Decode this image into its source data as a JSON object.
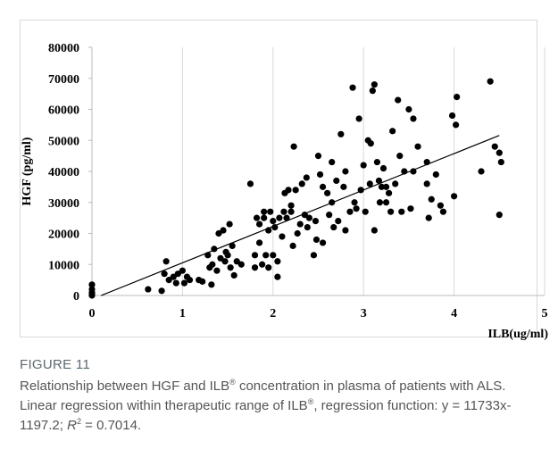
{
  "chart_data": {
    "type": "scatter",
    "xlabel": "ILB(ug/ml)",
    "ylabel": "HGF (pg/ml)",
    "xlim": [
      0,
      5
    ],
    "xticks": [
      0,
      1,
      2,
      3,
      4,
      5
    ],
    "ylim": [
      0,
      80000
    ],
    "yticks": [
      0,
      10000,
      20000,
      30000,
      40000,
      50000,
      60000,
      70000,
      80000
    ],
    "grid": "x",
    "series": [
      {
        "color": "#000000",
        "x": [
          0,
          0,
          0,
          0,
          0,
          0.62,
          0.77,
          0.82,
          0.8,
          0.85,
          0.9,
          0.93,
          0.95,
          1.0,
          1.02,
          1.05,
          1.08,
          1.18,
          1.22,
          1.28,
          1.3,
          1.32,
          1.33,
          1.35,
          1.38,
          1.4,
          1.42,
          1.45,
          1.47,
          1.48,
          1.5,
          1.52,
          1.53,
          1.55,
          1.57,
          1.6,
          1.65,
          1.75,
          1.8,
          1.8,
          1.82,
          1.85,
          1.85,
          1.88,
          1.9,
          1.9,
          1.92,
          1.95,
          1.95,
          1.97,
          2.0,
          2.0,
          2.02,
          2.05,
          2.05,
          2.07,
          2.1,
          2.12,
          2.13,
          2.15,
          2.17,
          2.2,
          2.2,
          2.23,
          2.22,
          2.25,
          2.27,
          2.3,
          2.32,
          2.35,
          2.37,
          2.38,
          2.4,
          2.45,
          2.47,
          2.48,
          2.5,
          2.52,
          2.55,
          2.55,
          2.6,
          2.62,
          2.65,
          2.65,
          2.67,
          2.7,
          2.72,
          2.75,
          2.78,
          2.8,
          2.8,
          2.85,
          2.88,
          2.9,
          2.92,
          2.95,
          2.97,
          3.0,
          3.02,
          3.05,
          3.07,
          3.08,
          3.1,
          3.12,
          3.12,
          3.15,
          3.17,
          3.18,
          3.2,
          3.22,
          3.25,
          3.25,
          3.28,
          3.3,
          3.32,
          3.35,
          3.38,
          3.4,
          3.42,
          3.45,
          3.5,
          3.52,
          3.55,
          3.55,
          3.6,
          3.7,
          3.7,
          3.72,
          3.75,
          3.8,
          3.85,
          3.88,
          3.98,
          4.0,
          4.02,
          4.03,
          4.3,
          4.4,
          4.45,
          4.5,
          4.52,
          4.5
        ],
        "y": [
          0,
          1000,
          2000,
          3500,
          500,
          2000,
          1500,
          11000,
          7000,
          5000,
          6000,
          4000,
          7000,
          8000,
          4000,
          6000,
          5000,
          5000,
          4500,
          13000,
          9000,
          3500,
          10000,
          15000,
          8000,
          20000,
          12000,
          21000,
          11000,
          14000,
          13000,
          23000,
          9000,
          16000,
          6500,
          11000,
          10000,
          36000,
          9000,
          13000,
          25000,
          23000,
          17000,
          10000,
          25000,
          27000,
          13000,
          21000,
          9000,
          27000,
          13000,
          24000,
          22000,
          11000,
          6000,
          25000,
          19000,
          27000,
          33000,
          25000,
          34000,
          29000,
          27000,
          48000,
          16000,
          34000,
          20000,
          23000,
          36000,
          26000,
          38000,
          22000,
          25000,
          13000,
          24000,
          18000,
          45000,
          39000,
          17000,
          35000,
          33000,
          26000,
          30000,
          43000,
          22000,
          37000,
          24000,
          52000,
          35000,
          40000,
          21000,
          27000,
          67000,
          30000,
          28000,
          57000,
          34000,
          42000,
          27000,
          50000,
          36000,
          49000,
          66000,
          68000,
          21000,
          43000,
          37000,
          30000,
          35000,
          41000,
          35000,
          30000,
          33000,
          27000,
          53000,
          36000,
          63000,
          45000,
          27000,
          40000,
          60000,
          28000,
          57000,
          40000,
          48000,
          43000,
          36000,
          25000,
          31000,
          39000,
          29000,
          27000,
          58000,
          32000,
          55000,
          64000,
          40000,
          69000,
          48000,
          46000,
          43000,
          26000
        ]
      }
    ],
    "trendline": {
      "color": "#000000",
      "x": [
        0.1,
        4.5
      ],
      "y": [
        -24,
        51602
      ]
    }
  },
  "caption": {
    "label": "FIGURE 11",
    "parts": [
      "Relationship between HGF and ILB",
      "®",
      " concentration in plasma of patients with ALS. Linear regression within therapeutic range of ILB",
      "®",
      ", regression function: y = 11733x-1197.2; ",
      "R",
      "2",
      " = 0.7014."
    ]
  }
}
